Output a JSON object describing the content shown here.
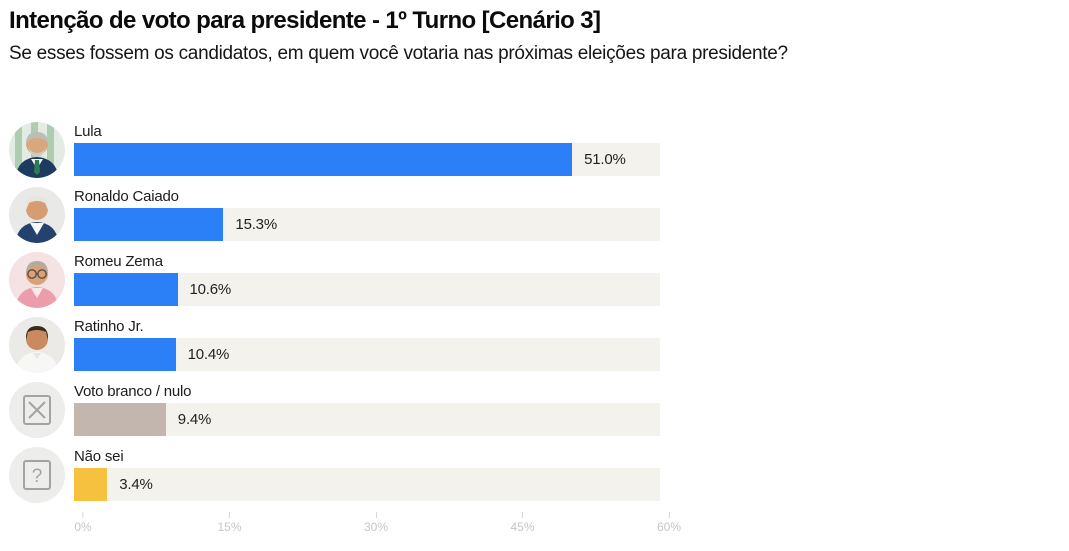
{
  "chart_data": {
    "type": "bar",
    "orientation": "horizontal",
    "title": "Intenção de voto para presidente - 1º Turno [Cenário 3]",
    "subtitle": "Se esses fossem os candidatos, em quem você votaria nas próximas eleições para presidente?",
    "categories": [
      "Lula",
      "Ronaldo Caiado",
      "Romeu Zema",
      "Ratinho Jr.",
      "Voto branco / nulo",
      "Não sei"
    ],
    "values": [
      51.0,
      15.3,
      10.6,
      10.4,
      9.4,
      3.4
    ],
    "value_labels": [
      "51.0%",
      "15.3%",
      "10.6%",
      "10.4%",
      "9.4%",
      "3.4%"
    ],
    "bar_colors": [
      "#2b80f7",
      "#2b80f7",
      "#2b80f7",
      "#2b80f7",
      "#c3b6ae",
      "#f6c13e"
    ],
    "track_color": "#f3f2ed",
    "xlabel": "",
    "ylabel": "",
    "xlim": [
      0,
      60
    ],
    "x_ticks": [
      "0%",
      "15%",
      "30%",
      "45%",
      "60%"
    ],
    "x_tick_values": [
      0,
      15,
      30,
      45,
      60
    ],
    "grid": "off",
    "legend": "none"
  },
  "avatars": [
    "lula-portrait-avatar",
    "ronaldo-caiado-portrait-avatar",
    "romeu-zema-portrait-avatar",
    "ratinho-jr-portrait-avatar",
    "invalid-vote-x-icon",
    "dont-know-question-icon"
  ],
  "colors": {
    "accent_blue": "#2b80f7",
    "blank_null_taupe": "#c3b6ae",
    "dont_know_yellow": "#f6c13e",
    "bar_track": "#f3f2ed",
    "axis_text": "#c6c6c6"
  }
}
